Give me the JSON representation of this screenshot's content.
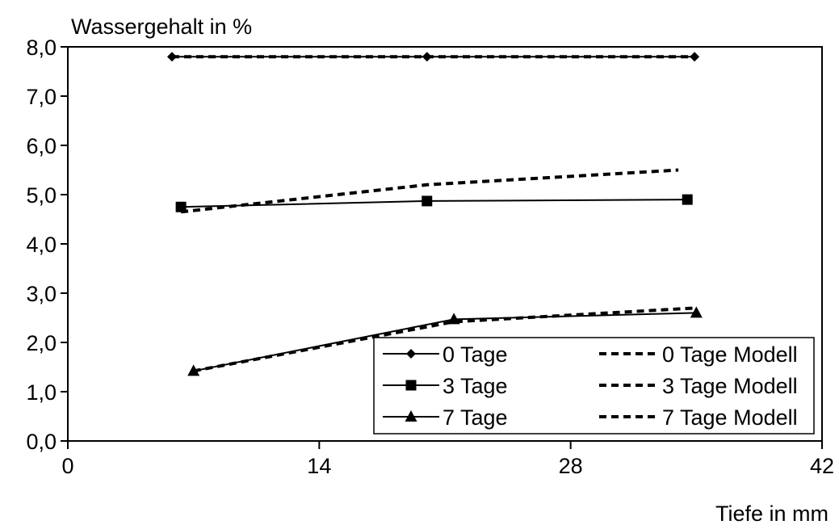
{
  "chart_data": {
    "type": "line",
    "title": "",
    "ylabel": "Wassergehalt in %",
    "xlabel": "Tiefe in mm",
    "xlim": [
      0,
      42
    ],
    "ylim": [
      0,
      8
    ],
    "x_ticks": [
      0,
      14,
      28,
      42
    ],
    "x_tick_labels": [
      "0",
      "14",
      "28",
      "42"
    ],
    "y_ticks": [
      0,
      1,
      2,
      3,
      4,
      5,
      6,
      7,
      8
    ],
    "y_tick_labels": [
      "0,0",
      "1,0",
      "2,0",
      "3,0",
      "4,0",
      "5,0",
      "6,0",
      "7,0",
      "8,0"
    ],
    "grid": false,
    "legend_position": "bottom-right",
    "series": [
      {
        "name": "0 Tage",
        "style": "solid",
        "marker": "diamond",
        "x": [
          5.8,
          20.0,
          34.9
        ],
        "y": [
          7.8,
          7.8,
          7.8
        ]
      },
      {
        "name": "3 Tage",
        "style": "solid",
        "marker": "square",
        "x": [
          6.3,
          20.0,
          34.5
        ],
        "y": [
          4.75,
          4.87,
          4.9
        ]
      },
      {
        "name": "7 Tage",
        "style": "solid",
        "marker": "triangle",
        "x": [
          7.0,
          21.5,
          35.0
        ],
        "y": [
          1.42,
          2.47,
          2.6
        ]
      },
      {
        "name": "0 Tage Modell",
        "style": "dashed",
        "marker": "none",
        "x": [
          5.8,
          20.0,
          34.9
        ],
        "y": [
          7.8,
          7.8,
          7.8
        ]
      },
      {
        "name": "3 Tage Modell",
        "style": "dashed",
        "marker": "none",
        "x": [
          6.3,
          20.0,
          34.0
        ],
        "y": [
          4.65,
          5.2,
          5.5
        ]
      },
      {
        "name": "7 Tage Modell",
        "style": "dashed",
        "marker": "none",
        "x": [
          7.0,
          21.5,
          35.0
        ],
        "y": [
          1.42,
          2.42,
          2.7
        ]
      }
    ]
  }
}
